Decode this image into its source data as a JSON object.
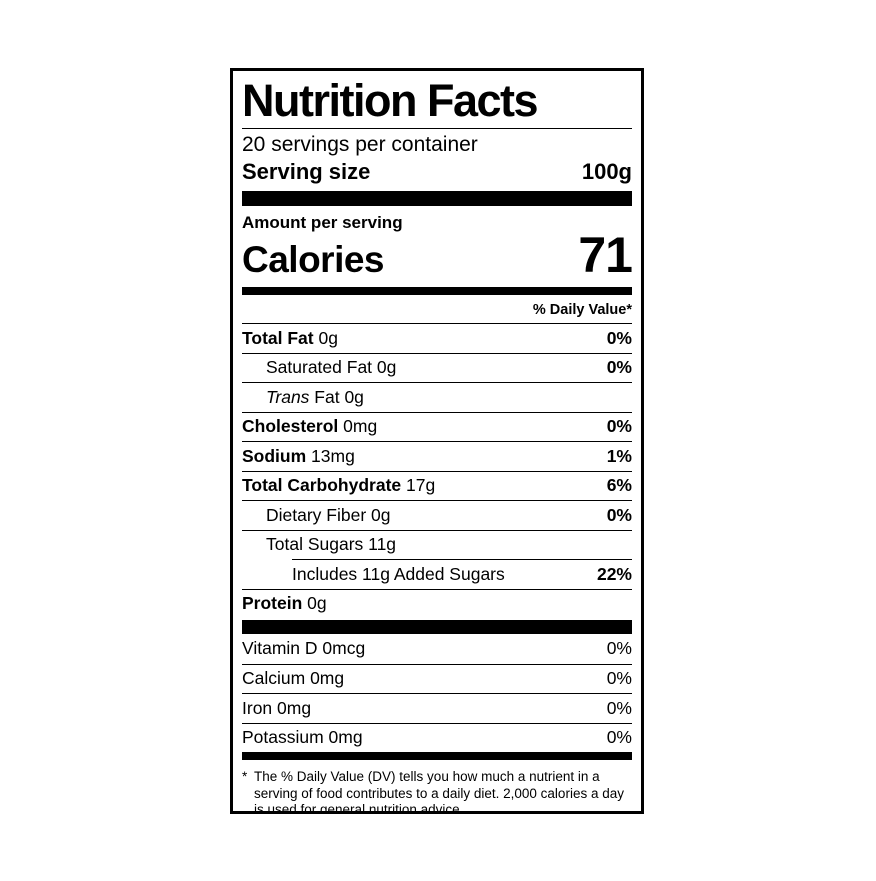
{
  "label": {
    "title": "Nutrition Facts",
    "servings_per_container": "20 servings per container",
    "serving_size_label": "Serving size",
    "serving_size_value": "100g",
    "amount_per_serving": "Amount per serving",
    "calories_label": "Calories",
    "calories_value": "71",
    "daily_value_header": "% Daily Value*",
    "nutrients": [
      {
        "parts": [
          {
            "text": "Total Fat ",
            "bold": true
          },
          {
            "text": "0g"
          }
        ],
        "pct": "0%",
        "pct_bold": true,
        "indent": 0
      },
      {
        "parts": [
          {
            "text": "Saturated Fat 0g"
          }
        ],
        "pct": "0%",
        "pct_bold": true,
        "indent": 1
      },
      {
        "parts": [
          {
            "text": "Trans",
            "italic": true
          },
          {
            "text": " Fat 0g"
          }
        ],
        "pct": "",
        "pct_bold": false,
        "indent": 1
      },
      {
        "parts": [
          {
            "text": "Cholesterol ",
            "bold": true
          },
          {
            "text": "0mg"
          }
        ],
        "pct": "0%",
        "pct_bold": true,
        "indent": 0
      },
      {
        "parts": [
          {
            "text": "Sodium ",
            "bold": true
          },
          {
            "text": "13mg"
          }
        ],
        "pct": "1%",
        "pct_bold": true,
        "indent": 0
      },
      {
        "parts": [
          {
            "text": "Total Carbohydrate ",
            "bold": true
          },
          {
            "text": "17g"
          }
        ],
        "pct": "6%",
        "pct_bold": true,
        "indent": 0
      },
      {
        "parts": [
          {
            "text": "Dietary Fiber 0g"
          }
        ],
        "pct": "0%",
        "pct_bold": true,
        "indent": 1
      },
      {
        "parts": [
          {
            "text": "Total Sugars 11g"
          }
        ],
        "pct": "",
        "pct_bold": false,
        "indent": 1
      },
      {
        "parts": [
          {
            "text": "Includes 11g Added Sugars"
          }
        ],
        "pct": "22%",
        "pct_bold": true,
        "indent": 2
      },
      {
        "parts": [
          {
            "text": "Protein ",
            "bold": true
          },
          {
            "text": "0g"
          }
        ],
        "pct": "",
        "pct_bold": false,
        "indent": 0
      }
    ],
    "vitamins": [
      {
        "parts": [
          {
            "text": "Vitamin D 0mcg"
          }
        ],
        "pct": "0%",
        "pct_bold": false,
        "indent": 0
      },
      {
        "parts": [
          {
            "text": "Calcium 0mg"
          }
        ],
        "pct": "0%",
        "pct_bold": false,
        "indent": 0
      },
      {
        "parts": [
          {
            "text": "Iron 0mg"
          }
        ],
        "pct": "0%",
        "pct_bold": false,
        "indent": 0
      },
      {
        "parts": [
          {
            "text": "Potassium 0mg"
          }
        ],
        "pct": "0%",
        "pct_bold": false,
        "indent": 0
      }
    ],
    "footnote_marker": "*",
    "footnote": "The % Daily Value (DV) tells you how much a nutrient in a serving of food contributes to a daily diet. 2,000 calories a day is used for general nutrition advice.",
    "colors": {
      "ink": "#000000",
      "background": "#ffffff"
    }
  }
}
